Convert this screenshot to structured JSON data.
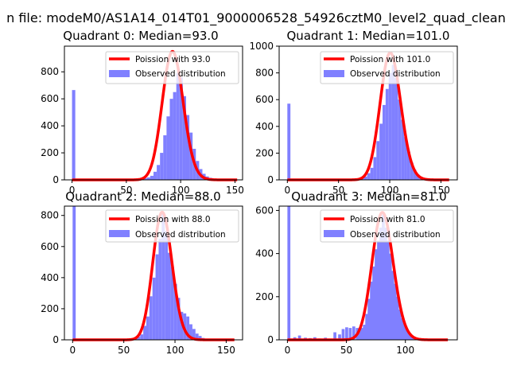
{
  "figure_title": "n file: modeM0/AS1A14_014T01_9000006528_54926cztM0_level2_quad_clean",
  "colors": {
    "poisson": "#ff0000",
    "observed": "#8080ff",
    "axis": "#000000",
    "background": "#ffffff"
  },
  "chart_data": [
    {
      "type": "bar",
      "title": "Quadrant 0: Median=93.0",
      "median": 93.0,
      "xlim": [
        -7,
        157
      ],
      "ylim": [
        0,
        990
      ],
      "xticks": [
        0,
        50,
        100,
        150
      ],
      "yticks": [
        0,
        200,
        400,
        600,
        800
      ],
      "bin_width": 3,
      "bins": [
        [
          0,
          665
        ],
        [
          54,
          3
        ],
        [
          57,
          5
        ],
        [
          60,
          6
        ],
        [
          63,
          8
        ],
        [
          66,
          12
        ],
        [
          69,
          18
        ],
        [
          72,
          30
        ],
        [
          75,
          60
        ],
        [
          78,
          110
        ],
        [
          81,
          200
        ],
        [
          84,
          330
        ],
        [
          87,
          470
        ],
        [
          90,
          600
        ],
        [
          93,
          650
        ],
        [
          96,
          790
        ],
        [
          99,
          760
        ],
        [
          102,
          620
        ],
        [
          105,
          480
        ],
        [
          108,
          350
        ],
        [
          111,
          230
        ],
        [
          114,
          140
        ],
        [
          117,
          80
        ],
        [
          120,
          45
        ],
        [
          123,
          25
        ],
        [
          126,
          15
        ],
        [
          129,
          8
        ],
        [
          132,
          4
        ],
        [
          135,
          2
        ]
      ],
      "legend": [
        "Poission with 93.0",
        "Observed distribution"
      ],
      "poisson": {
        "lambda": 93.0,
        "peak": 950,
        "x_range": [
          0,
          152
        ]
      }
    },
    {
      "type": "bar",
      "title": "Quadrant 1: Median=101.0",
      "median": 101.0,
      "xlim": [
        -8,
        166
      ],
      "ylim": [
        0,
        1000
      ],
      "xticks": [
        0,
        50,
        100,
        150
      ],
      "yticks": [
        0,
        200,
        400,
        600,
        800,
        1000
      ],
      "bin_width": 3,
      "bins": [
        [
          0,
          570
        ],
        [
          60,
          3
        ],
        [
          63,
          4
        ],
        [
          66,
          6
        ],
        [
          69,
          10
        ],
        [
          72,
          15
        ],
        [
          75,
          25
        ],
        [
          78,
          50
        ],
        [
          81,
          90
        ],
        [
          84,
          170
        ],
        [
          87,
          290
        ],
        [
          90,
          420
        ],
        [
          93,
          560
        ],
        [
          96,
          680
        ],
        [
          99,
          800
        ],
        [
          102,
          860
        ],
        [
          105,
          760
        ],
        [
          108,
          600
        ],
        [
          111,
          450
        ],
        [
          114,
          320
        ],
        [
          117,
          210
        ],
        [
          120,
          130
        ],
        [
          123,
          75
        ],
        [
          126,
          40
        ],
        [
          129,
          20
        ],
        [
          132,
          10
        ],
        [
          135,
          5
        ],
        [
          138,
          2
        ]
      ],
      "legend": [
        "Poission with 101.0",
        "Observed distribution"
      ],
      "poisson": {
        "lambda": 101.0,
        "peak": 950,
        "x_range": [
          0,
          158
        ]
      }
    },
    {
      "type": "bar",
      "title": "Quadrant 2: Median=88.0",
      "median": 88.0,
      "xlim": [
        -8,
        166
      ],
      "ylim": [
        0,
        860
      ],
      "xticks": [
        0,
        50,
        100,
        150
      ],
      "yticks": [
        0,
        200,
        400,
        600,
        800
      ],
      "bin_width": 3,
      "bins": [
        [
          0,
          860
        ],
        [
          51,
          3
        ],
        [
          54,
          5
        ],
        [
          57,
          8
        ],
        [
          60,
          12
        ],
        [
          63,
          20
        ],
        [
          66,
          35
        ],
        [
          69,
          90
        ],
        [
          72,
          150
        ],
        [
          75,
          280
        ],
        [
          78,
          400
        ],
        [
          81,
          550
        ],
        [
          84,
          650
        ],
        [
          87,
          820
        ],
        [
          90,
          700
        ],
        [
          93,
          560
        ],
        [
          96,
          470
        ],
        [
          99,
          360
        ],
        [
          102,
          270
        ],
        [
          105,
          180
        ],
        [
          108,
          170
        ],
        [
          111,
          150
        ],
        [
          114,
          100
        ],
        [
          117,
          70
        ],
        [
          120,
          40
        ],
        [
          123,
          25
        ],
        [
          126,
          12
        ],
        [
          129,
          6
        ],
        [
          132,
          3
        ]
      ],
      "legend": [
        "Poission with 88.0",
        "Observed distribution"
      ],
      "poisson": {
        "lambda": 88.0,
        "peak": 820,
        "x_range": [
          0,
          158
        ]
      }
    },
    {
      "type": "bar",
      "title": "Quadrant 3: Median=81.0",
      "median": 81.0,
      "xlim": [
        -7,
        144
      ],
      "ylim": [
        0,
        620
      ],
      "xticks": [
        0,
        50,
        100
      ],
      "yticks": [
        0,
        200,
        400,
        600
      ],
      "bin_width": 2.5,
      "bins": [
        [
          0,
          620
        ],
        [
          5,
          12
        ],
        [
          9,
          20
        ],
        [
          14,
          10
        ],
        [
          18,
          8
        ],
        [
          22,
          12
        ],
        [
          26,
          6
        ],
        [
          31,
          10
        ],
        [
          35,
          5
        ],
        [
          39,
          35
        ],
        [
          43,
          25
        ],
        [
          46,
          50
        ],
        [
          49,
          58
        ],
        [
          52,
          55
        ],
        [
          55,
          62
        ],
        [
          58,
          55
        ],
        [
          60,
          40
        ],
        [
          62,
          55
        ],
        [
          64,
          70
        ],
        [
          66,
          120
        ],
        [
          68,
          190
        ],
        [
          70,
          270
        ],
        [
          72,
          340
        ],
        [
          74,
          420
        ],
        [
          76,
          460
        ],
        [
          78,
          520
        ],
        [
          80,
          580
        ],
        [
          82,
          520
        ],
        [
          84,
          460
        ],
        [
          86,
          400
        ],
        [
          88,
          320
        ],
        [
          90,
          260
        ],
        [
          92,
          200
        ],
        [
          94,
          140
        ],
        [
          96,
          100
        ],
        [
          98,
          70
        ],
        [
          100,
          50
        ],
        [
          102,
          30
        ],
        [
          104,
          20
        ],
        [
          106,
          12
        ],
        [
          108,
          8
        ],
        [
          110,
          5
        ],
        [
          112,
          3
        ]
      ],
      "legend": [
        "Poission with 81.0",
        "Observed distribution"
      ],
      "poisson": {
        "lambda": 81.0,
        "peak": 590,
        "x_range": [
          0,
          136
        ]
      }
    }
  ]
}
